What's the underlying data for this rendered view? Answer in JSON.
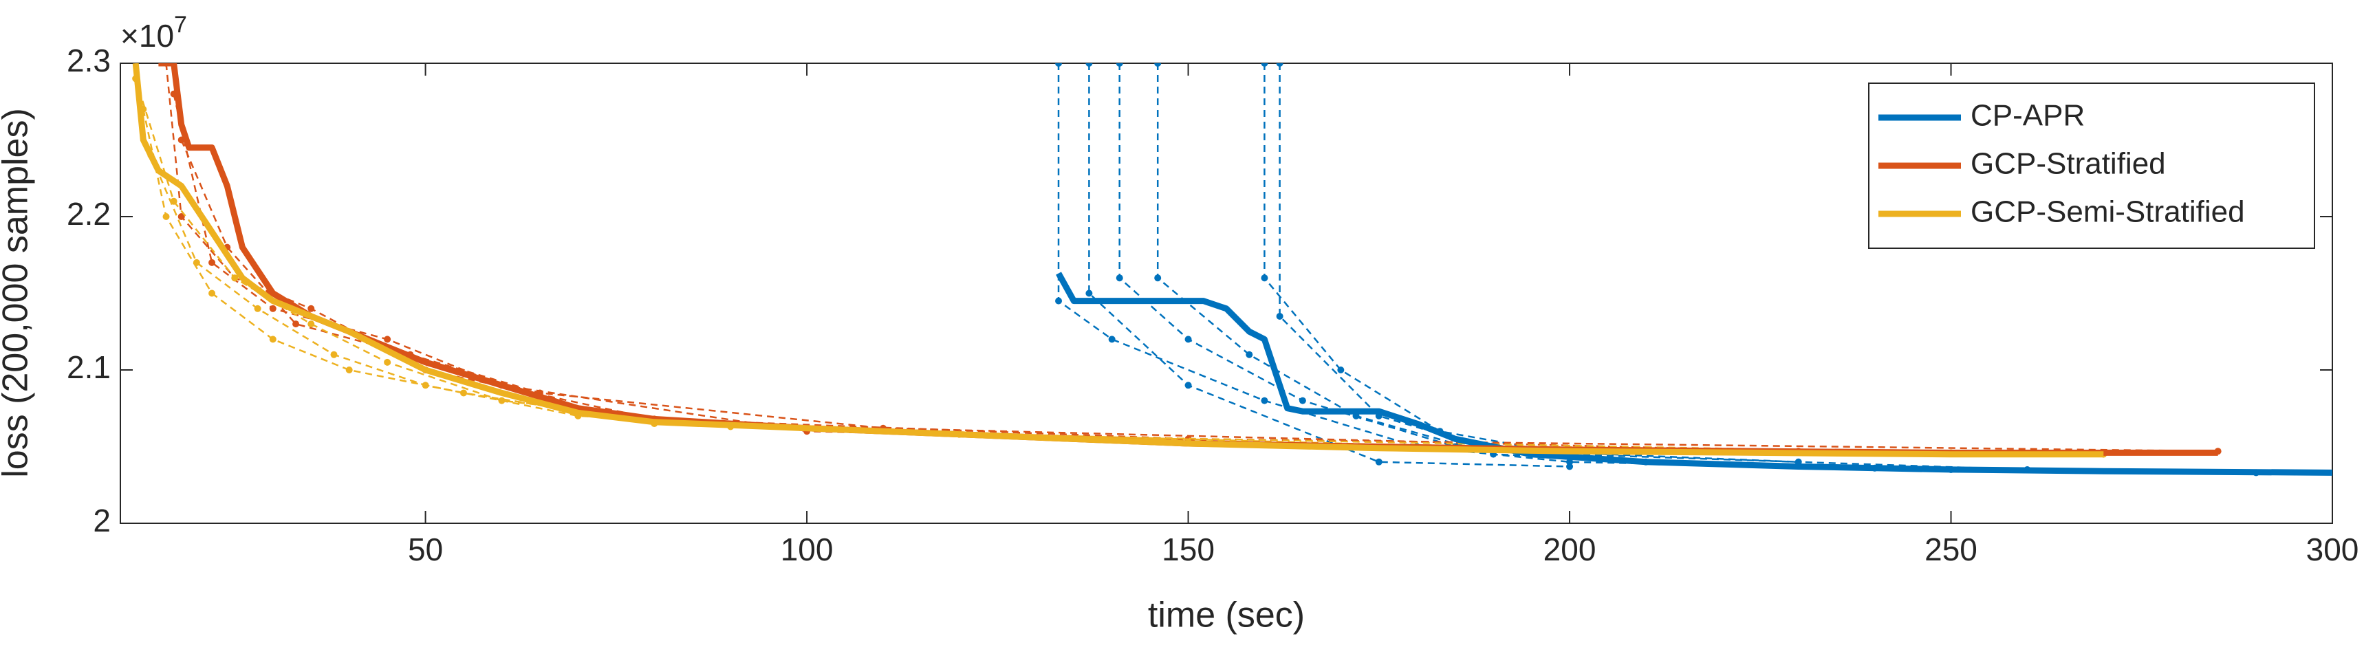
{
  "chart_data": {
    "type": "line",
    "x_label": "time (sec)",
    "y_label": "loss (200,000 samples)",
    "y_exponent_base": "×10",
    "y_exponent": 7,
    "xlim": [
      10,
      300
    ],
    "xticks": [
      50,
      100,
      150,
      200,
      250,
      300
    ],
    "ylim": [
      2,
      2.3
    ],
    "yticks": [
      2,
      2.1,
      2.2,
      2.3
    ],
    "grid": false,
    "legend": "northeast",
    "series": [
      {
        "name": "CP-APR",
        "color": "#0072BD",
        "x": [
          133,
          135,
          140,
          145,
          152,
          155,
          158,
          160,
          162,
          163,
          165,
          175,
          180,
          185,
          195,
          210,
          230,
          250,
          270,
          300
        ],
        "values": [
          2.163,
          2.145,
          2.145,
          2.145,
          2.145,
          2.14,
          2.125,
          2.12,
          2.09,
          2.075,
          2.073,
          2.073,
          2.065,
          2.055,
          2.045,
          2.04,
          2.037,
          2.035,
          2.034,
          2.033
        ],
        "runs": [
          {
            "x": [
              133,
              133,
              140,
              160,
              180,
              200,
              250,
              290
            ],
            "values": [
              2.3,
              2.145,
              2.12,
              2.08,
              2.05,
              2.04,
              2.035,
              2.033
            ]
          },
          {
            "x": [
              137,
              137,
              150,
              175,
              200
            ],
            "values": [
              2.3,
              2.15,
              2.09,
              2.04,
              2.037
            ]
          },
          {
            "x": [
              141,
              141,
              150,
              165,
              185,
              210
            ],
            "values": [
              2.3,
              2.16,
              2.12,
              2.08,
              2.05,
              2.04
            ]
          },
          {
            "x": [
              146,
              146,
              158,
              172,
              190,
              240
            ],
            "values": [
              2.3,
              2.16,
              2.11,
              2.07,
              2.045,
              2.036
            ]
          },
          {
            "x": [
              160,
              160,
              170,
              183,
              200,
              260
            ],
            "values": [
              2.3,
              2.16,
              2.1,
              2.06,
              2.045,
              2.035
            ]
          },
          {
            "x": [
              162,
              162,
              175,
              190,
              230
            ],
            "values": [
              2.3,
              2.135,
              2.07,
              2.048,
              2.04
            ]
          }
        ]
      },
      {
        "name": "GCP-Stratified",
        "color": "#D95319",
        "x": [
          15,
          17,
          18,
          19,
          22,
          24,
          26,
          30,
          35,
          40,
          45,
          50,
          60,
          70,
          80,
          100,
          125,
          150,
          175,
          200,
          250,
          285
        ],
        "values": [
          2.3,
          2.3,
          2.26,
          2.245,
          2.245,
          2.22,
          2.18,
          2.15,
          2.135,
          2.125,
          2.115,
          2.105,
          2.09,
          2.075,
          2.068,
          2.062,
          2.057,
          2.052,
          2.05,
          2.048,
          2.046,
          2.046
        ],
        "runs": [
          {
            "x": [
              16,
              18,
              25,
              35,
              50,
              80,
              150,
              285
            ],
            "values": [
              2.3,
              2.2,
              2.16,
              2.14,
              2.1,
              2.068,
              2.055,
              2.047
            ]
          },
          {
            "x": [
              17,
              22,
              30,
              45,
              60,
              100,
              200
            ],
            "values": [
              2.28,
              2.17,
              2.14,
              2.12,
              2.09,
              2.06,
              2.048
            ]
          },
          {
            "x": [
              18,
              24,
              33,
              48,
              65,
              110,
              230
            ],
            "values": [
              2.25,
              2.18,
              2.13,
              2.11,
              2.085,
              2.062,
              2.047
            ]
          }
        ]
      },
      {
        "name": "GCP-Semi-Stratified",
        "color": "#EDB120",
        "x": [
          12,
          13,
          15,
          18,
          22,
          26,
          30,
          40,
          50,
          60,
          70,
          80,
          100,
          125,
          150,
          175,
          200,
          250,
          270
        ],
        "values": [
          2.3,
          2.25,
          2.23,
          2.22,
          2.19,
          2.16,
          2.145,
          2.125,
          2.1,
          2.085,
          2.072,
          2.066,
          2.062,
          2.057,
          2.052,
          2.049,
          2.047,
          2.045,
          2.045
        ],
        "runs": [
          {
            "x": [
              13,
              16,
              22,
              30,
              40,
              55,
              80,
              150,
              270
            ],
            "values": [
              2.27,
              2.2,
              2.15,
              2.12,
              2.1,
              2.085,
              2.065,
              2.053,
              2.045
            ]
          },
          {
            "x": [
              14,
              20,
              28,
              38,
              50,
              70,
              120,
              250
            ],
            "values": [
              2.24,
              2.17,
              2.14,
              2.11,
              2.09,
              2.07,
              2.058,
              2.046
            ]
          },
          {
            "x": [
              12,
              17,
              25,
              35,
              45,
              60,
              90,
              200
            ],
            "values": [
              2.29,
              2.21,
              2.16,
              2.13,
              2.105,
              2.08,
              2.063,
              2.048
            ]
          }
        ]
      }
    ]
  }
}
